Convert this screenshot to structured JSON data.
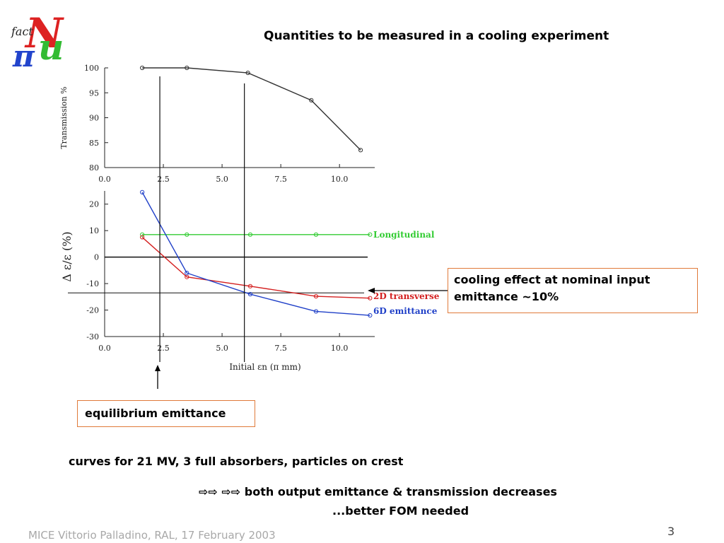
{
  "slide": {
    "title": "Quantities to be measured in a cooling experiment",
    "logo_text": "fact NuFact",
    "cooling_note_line1": "cooling effect at nominal input",
    "cooling_note_line2": "emittance ~10%",
    "equilibrium_note": "equilibrium emittance",
    "curves_note": "curves for 21 MV, 3 full absorbers, particles on crest",
    "both_note": "⇨⇨ ⇨⇨ both output emittance & transmission decreases",
    "fom_note": "...better FOM needed",
    "footer": "MICE Vittorio Palladino,  RAL, 17 February 2003",
    "page_number": "3"
  },
  "chart_data": [
    {
      "type": "line",
      "title": "",
      "xlabel": "",
      "ylabel": "Transmission   %",
      "xlim": [
        0.0,
        11.5
      ],
      "ylim": [
        80,
        100
      ],
      "xticks": [
        "0.0",
        "2.5",
        "5.0",
        "7.5",
        "10.0"
      ],
      "yticks": [
        "80",
        "85",
        "90",
        "95",
        "100"
      ],
      "series": [
        {
          "color": "#333333",
          "x": [
            1.6,
            3.5,
            6.1,
            8.8,
            10.9
          ],
          "y": [
            100,
            100,
            99,
            93.5,
            83.5
          ]
        }
      ],
      "vlines": [
        2.35,
        5.95
      ]
    },
    {
      "type": "line",
      "title": "",
      "xlabel": "Initial εn   (π mm)",
      "ylabel": "Δ ε/ε    (%)",
      "xlim": [
        0.0,
        11.5
      ],
      "ylim": [
        -30,
        25
      ],
      "xticks": [
        "0.0",
        "2.5",
        "5.0",
        "7.5",
        "10.0"
      ],
      "yticks": [
        "-30",
        "-20",
        "-10",
        "0",
        "10",
        "20"
      ],
      "legend_position": "right",
      "series": [
        {
          "name": "Longitudinal",
          "color": "#33cc33",
          "x": [
            1.6,
            3.5,
            6.2,
            9.0,
            11.3
          ],
          "y": [
            8.5,
            8.5,
            8.5,
            8.5,
            8.5
          ]
        },
        {
          "name": "2D transverse",
          "color": "#d42020",
          "x": [
            1.6,
            3.5,
            6.2,
            9.0,
            11.3
          ],
          "y": [
            7.5,
            -7.5,
            -11,
            -14.8,
            -15.5
          ]
        },
        {
          "name": "6D emittance",
          "color": "#2040c8",
          "x": [
            1.6,
            3.5,
            6.2,
            9.0,
            11.3
          ],
          "y": [
            24.5,
            -6,
            -14,
            -20.5,
            -22
          ]
        }
      ],
      "hlines": [
        0,
        -13.5
      ],
      "vlines": [
        2.35,
        5.95
      ]
    }
  ]
}
